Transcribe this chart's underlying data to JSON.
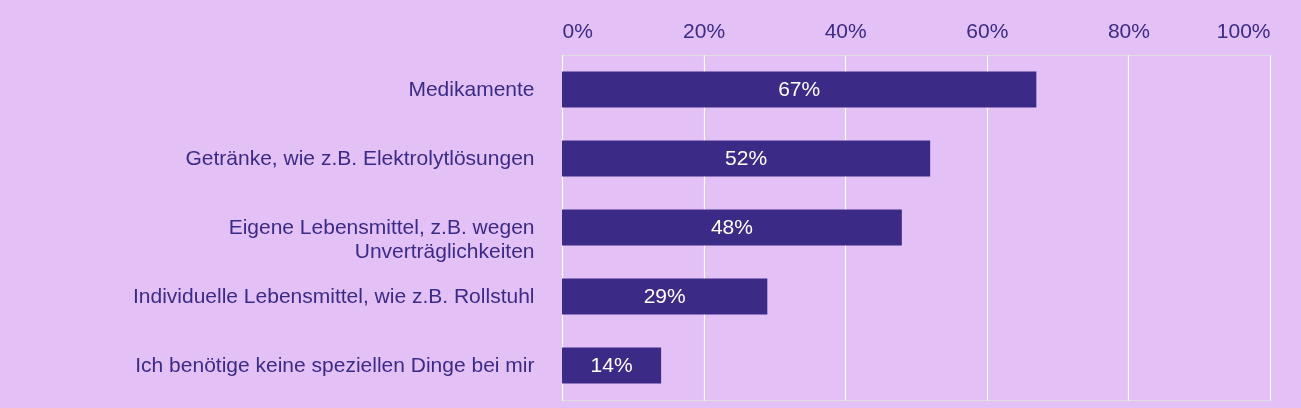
{
  "chart_data": {
    "type": "bar",
    "orientation": "horizontal",
    "categories": [
      "Medikamente",
      "Getränke, wie z.B. Elektrolytlösungen",
      "Eigene Lebensmittel, z.B. wegen\nUnverträglichkeiten",
      "Individuelle Lebensmittel, wie z.B. Rollstuhl",
      "Ich benötige keine speziellen Dinge bei mir"
    ],
    "values": [
      67,
      52,
      48,
      29,
      14
    ],
    "value_labels": [
      "67%",
      "52%",
      "48%",
      "29%",
      "14%"
    ],
    "color": "#3b2a86",
    "xlim": [
      0,
      100
    ],
    "xticks": [
      {
        "value": 0,
        "label": "0%"
      },
      {
        "value": 20,
        "label": "20%"
      },
      {
        "value": 40,
        "label": "40%"
      },
      {
        "value": 60,
        "label": "60%"
      },
      {
        "value": 80,
        "label": "80%"
      },
      {
        "value": 100,
        "label": "100%"
      }
    ],
    "grid": "x"
  }
}
